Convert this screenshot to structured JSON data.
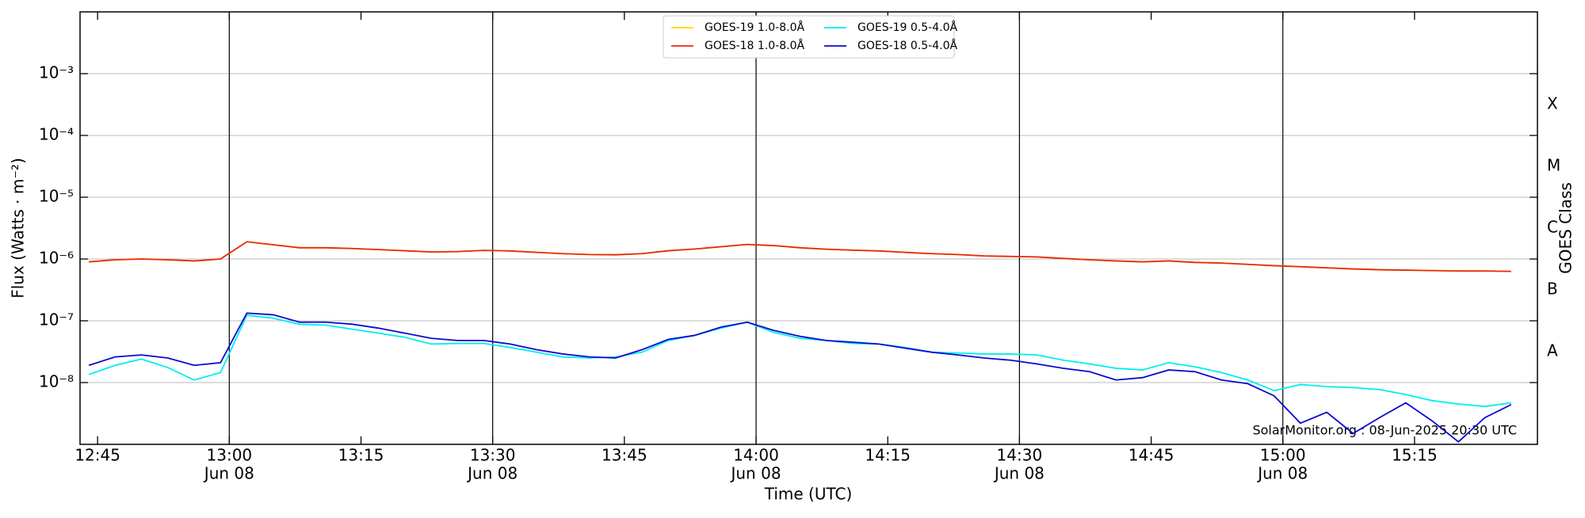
{
  "chart_data": {
    "type": "line",
    "log_y": true,
    "xlabel": "Time (UTC)",
    "ylabel": "Flux (Watts · m⁻²)",
    "y2label": "GOES Class",
    "annotation": "SolarMonitor.org : 08-Jun-2025 20:30 UTC",
    "legend": "upper center",
    "xlim": [
      "12:43",
      "15:29"
    ],
    "xticks": [
      "12:45",
      "13:00",
      "13:15",
      "13:30",
      "13:45",
      "14:00",
      "14:15",
      "14:30",
      "14:45",
      "15:00",
      "15:15"
    ],
    "xtick_dates": [
      null,
      "Jun 08",
      null,
      "Jun 08",
      null,
      "Jun 08",
      null,
      "Jun 08",
      null,
      "Jun 08",
      null
    ],
    "ylim": [
      1e-09,
      0.01
    ],
    "yticks": [
      {
        "value": 1e-08,
        "label": "10⁻⁸"
      },
      {
        "value": 1e-07,
        "label": "10⁻⁷"
      },
      {
        "value": 1e-06,
        "label": "10⁻⁶"
      },
      {
        "value": 1e-05,
        "label": "10⁻⁵"
      },
      {
        "value": 0.0001,
        "label": "10⁻⁴"
      },
      {
        "value": 0.001,
        "label": "10⁻³"
      }
    ],
    "classes": [
      {
        "value": 1e-08,
        "label": "A"
      },
      {
        "value": 1e-07,
        "label": "B"
      },
      {
        "value": 1e-06,
        "label": "C"
      },
      {
        "value": 1e-05,
        "label": "M"
      },
      {
        "value": 0.0001,
        "label": "X"
      }
    ],
    "x": [
      "12:44",
      "12:47",
      "12:50",
      "12:53",
      "12:56",
      "12:59",
      "13:02",
      "13:05",
      "13:08",
      "13:11",
      "13:14",
      "13:17",
      "13:20",
      "13:23",
      "13:26",
      "13:29",
      "13:32",
      "13:35",
      "13:38",
      "13:41",
      "13:44",
      "13:47",
      "13:50",
      "13:53",
      "13:56",
      "13:59",
      "14:02",
      "14:05",
      "14:08",
      "14:11",
      "14:14",
      "14:17",
      "14:20",
      "14:23",
      "14:26",
      "14:29",
      "14:32",
      "14:35",
      "14:38",
      "14:41",
      "14:44",
      "14:47",
      "14:50",
      "14:53",
      "14:56",
      "14:59",
      "15:02",
      "15:05",
      "15:08",
      "15:11",
      "15:14",
      "15:17",
      "15:20",
      "15:23",
      "15:26"
    ],
    "series": [
      {
        "name": "GOES-19 1.0-8.0Å",
        "color": "#ffd700",
        "values": [
          9e-07,
          9.7e-07,
          1e-06,
          9.7e-07,
          9.3e-07,
          1e-06,
          1.9e-06,
          1.7e-06,
          1.52e-06,
          1.52e-06,
          1.48e-06,
          1.42e-06,
          1.36e-06,
          1.3e-06,
          1.32e-06,
          1.38e-06,
          1.35e-06,
          1.28e-06,
          1.22e-06,
          1.18e-06,
          1.17e-06,
          1.22e-06,
          1.36e-06,
          1.45e-06,
          1.58e-06,
          1.72e-06,
          1.65e-06,
          1.52e-06,
          1.44e-06,
          1.39e-06,
          1.35e-06,
          1.28e-06,
          1.22e-06,
          1.18e-06,
          1.12e-06,
          1.1e-06,
          1.08e-06,
          1.02e-06,
          9.7e-07,
          9.3e-07,
          9e-07,
          9.3e-07,
          8.8e-07,
          8.6e-07,
          8.2e-07,
          7.8e-07,
          7.5e-07,
          7.2e-07,
          6.9e-07,
          6.7e-07,
          6.6e-07,
          6.5e-07,
          6.4e-07,
          6.4e-07,
          6.3e-07
        ]
      },
      {
        "name": "GOES-18 1.0-8.0Å",
        "color": "#e8290b",
        "values": [
          9e-07,
          9.7e-07,
          1e-06,
          9.7e-07,
          9.3e-07,
          1e-06,
          1.9e-06,
          1.7e-06,
          1.52e-06,
          1.52e-06,
          1.48e-06,
          1.42e-06,
          1.36e-06,
          1.3e-06,
          1.32e-06,
          1.38e-06,
          1.35e-06,
          1.28e-06,
          1.22e-06,
          1.18e-06,
          1.17e-06,
          1.22e-06,
          1.36e-06,
          1.45e-06,
          1.58e-06,
          1.72e-06,
          1.65e-06,
          1.52e-06,
          1.44e-06,
          1.39e-06,
          1.35e-06,
          1.28e-06,
          1.22e-06,
          1.18e-06,
          1.12e-06,
          1.1e-06,
          1.08e-06,
          1.02e-06,
          9.7e-07,
          9.3e-07,
          9e-07,
          9.3e-07,
          8.8e-07,
          8.6e-07,
          8.2e-07,
          7.8e-07,
          7.5e-07,
          7.2e-07,
          6.9e-07,
          6.7e-07,
          6.6e-07,
          6.5e-07,
          6.4e-07,
          6.4e-07,
          6.3e-07
        ]
      },
      {
        "name": "GOES-19 0.5-4.0Å",
        "color": "#00eeee",
        "values": [
          1.35e-08,
          1.9e-08,
          2.4e-08,
          1.75e-08,
          1.1e-08,
          1.45e-08,
          1.23e-07,
          1.1e-07,
          8.8e-08,
          8.5e-08,
          7.3e-08,
          6.3e-08,
          5.4e-08,
          4.2e-08,
          4.3e-08,
          4.3e-08,
          3.7e-08,
          3.1e-08,
          2.6e-08,
          2.5e-08,
          2.6e-08,
          3.1e-08,
          4.8e-08,
          5.8e-08,
          7.6e-08,
          9.5e-08,
          6.5e-08,
          5.2e-08,
          4.8e-08,
          4.3e-08,
          4.2e-08,
          3.7e-08,
          3.1e-08,
          3e-08,
          2.9e-08,
          2.9e-08,
          2.8e-08,
          2.3e-08,
          2e-08,
          1.7e-08,
          1.6e-08,
          2.1e-08,
          1.8e-08,
          1.45e-08,
          1.1e-08,
          7.4e-09,
          9.3e-09,
          8.6e-09,
          8.3e-09,
          7.7e-09,
          6.4e-09,
          5.1e-09,
          4.5e-09,
          4.1e-09,
          4.7e-09
        ]
      },
      {
        "name": "GOES-18 0.5-4.0Å",
        "color": "#0a0ad0",
        "values": [
          1.9e-08,
          2.6e-08,
          2.8e-08,
          2.5e-08,
          1.9e-08,
          2.1e-08,
          1.33e-07,
          1.25e-07,
          9.5e-08,
          9.5e-08,
          8.8e-08,
          7.6e-08,
          6.3e-08,
          5.2e-08,
          4.8e-08,
          4.8e-08,
          4.2e-08,
          3.4e-08,
          2.9e-08,
          2.6e-08,
          2.5e-08,
          3.4e-08,
          5e-08,
          5.8e-08,
          7.9e-08,
          9.5e-08,
          7e-08,
          5.6e-08,
          4.8e-08,
          4.5e-08,
          4.2e-08,
          3.6e-08,
          3.1e-08,
          2.8e-08,
          2.5e-08,
          2.3e-08,
          2e-08,
          1.7e-08,
          1.5e-08,
          1.1e-08,
          1.2e-08,
          1.6e-08,
          1.5e-08,
          1.1e-08,
          9.6e-09,
          6.1e-09,
          2.2e-09,
          3.3e-09,
          1.5e-09,
          2.7e-09,
          4.7e-09,
          2.4e-09,
          1.1e-09,
          2.7e-09,
          4.4e-09
        ]
      }
    ]
  }
}
